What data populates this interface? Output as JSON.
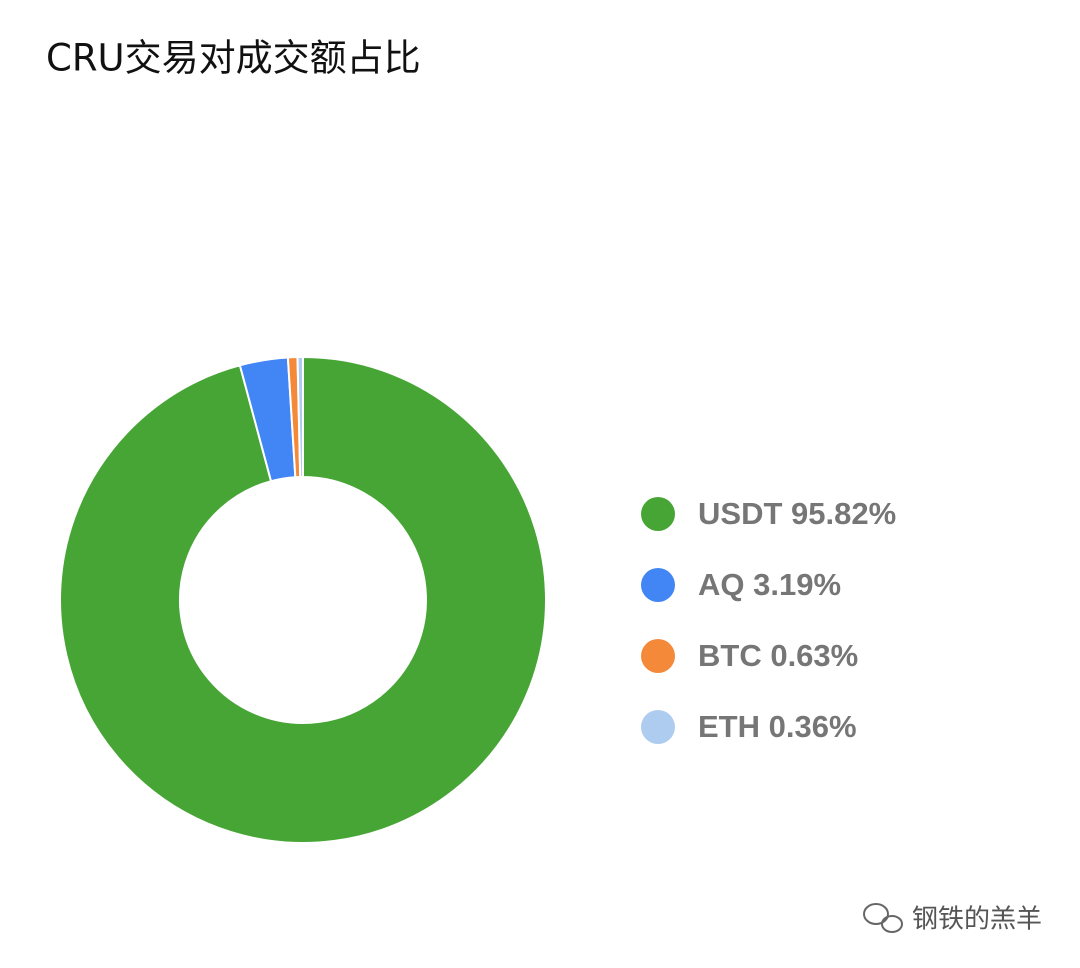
{
  "chart_data": {
    "type": "donut",
    "title": "CRU交易对成交额占比",
    "categories": [
      "USDT 95.82%",
      "AQ 3.19%",
      "BTC 0.63%",
      "ETH 0.36%"
    ],
    "values": [
      95.82,
      3.19,
      0.63,
      0.36
    ],
    "colors": [
      "#46a535",
      "#4285f4",
      "#f4893a",
      "#aecbf0"
    ],
    "legend": "right"
  },
  "watermark": "钢铁的羔羊"
}
